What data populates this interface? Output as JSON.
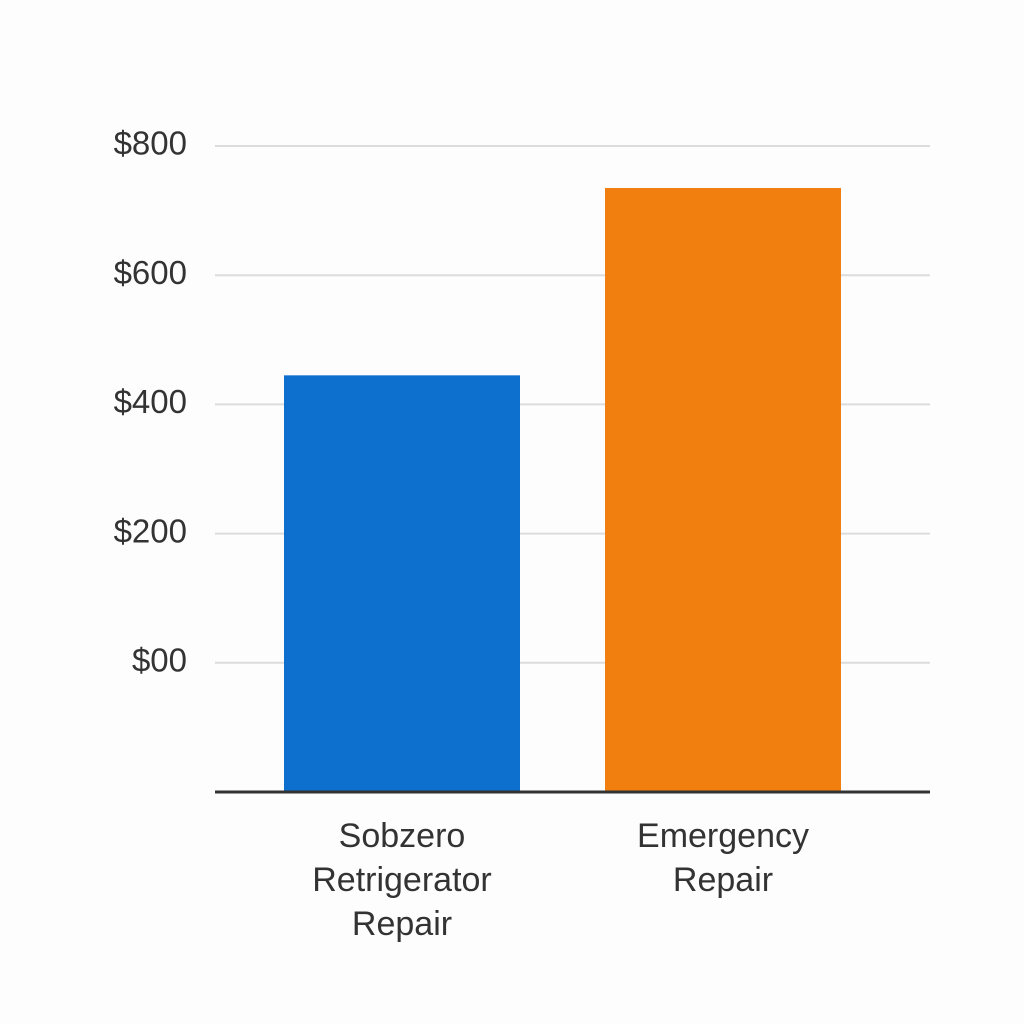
{
  "chart_data": {
    "type": "bar",
    "categories": [
      "Sobzero Retrigerator Repair",
      "Emergency Repair"
    ],
    "series": [
      {
        "values": [
          445,
          735
        ],
        "colors": [
          "#0d6fce",
          "#f07f0f"
        ]
      }
    ],
    "ylim": [
      -200,
      800
    ],
    "yticks": [
      {
        "value": 0,
        "label": "$00"
      },
      {
        "value": 200,
        "label": "$200"
      },
      {
        "value": 400,
        "label": "$400"
      },
      {
        "value": 600,
        "label": "$600"
      },
      {
        "value": 800,
        "label": "$800"
      }
    ],
    "grid": true
  }
}
